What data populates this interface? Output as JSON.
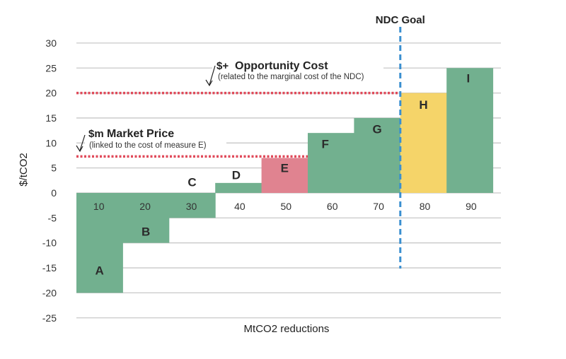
{
  "chart_data": {
    "type": "bar",
    "subtype": "marginal-abatement-cost-curve",
    "xlabel": "MtCO2 reductions",
    "ylabel": "$/tCO2",
    "ylim": [
      -25,
      30
    ],
    "yticks": [
      30,
      25,
      20,
      15,
      10,
      5,
      0,
      -5,
      -10,
      -15,
      -20,
      -25
    ],
    "xticks": [
      10,
      20,
      30,
      40,
      50,
      60,
      70,
      80,
      90
    ],
    "grid": true,
    "bars": [
      {
        "label": "A",
        "x": 10,
        "value": -20,
        "color": "#72b08f"
      },
      {
        "label": "B",
        "x": 20,
        "value": -10,
        "color": "#72b08f"
      },
      {
        "label": "C",
        "x": 30,
        "value": -5,
        "color": "#72b08f"
      },
      {
        "label": "D",
        "x": 40,
        "value": 2,
        "color": "#72b08f"
      },
      {
        "label": "E",
        "x": 50,
        "value": 7,
        "color": "#e08390"
      },
      {
        "label": "F",
        "x": 60,
        "value": 12,
        "color": "#72b08f"
      },
      {
        "label": "G",
        "x": 70,
        "value": 15,
        "color": "#72b08f"
      },
      {
        "label": "H",
        "x": 80,
        "value": 20,
        "color": "#f5d469"
      },
      {
        "label": "I",
        "x": 90,
        "value": 25,
        "color": "#72b08f"
      }
    ],
    "reference_lines": [
      {
        "kind": "horizontal",
        "value": 20,
        "x_end": 75,
        "color": "#e04a5a",
        "title_symbol": "$+",
        "title": "Opportunity Cost",
        "subtitle": "(related to the marginal cost  of the NDC)"
      },
      {
        "kind": "horizontal",
        "value": 7.3,
        "x_end": 55,
        "color": "#e04a5a",
        "title_symbol": "$m",
        "title": "Market Price",
        "subtitle": "(linked to the cost of measure E)"
      },
      {
        "kind": "vertical",
        "value": 75,
        "color": "#3a8fd0",
        "title": "NDC Goal"
      }
    ]
  }
}
